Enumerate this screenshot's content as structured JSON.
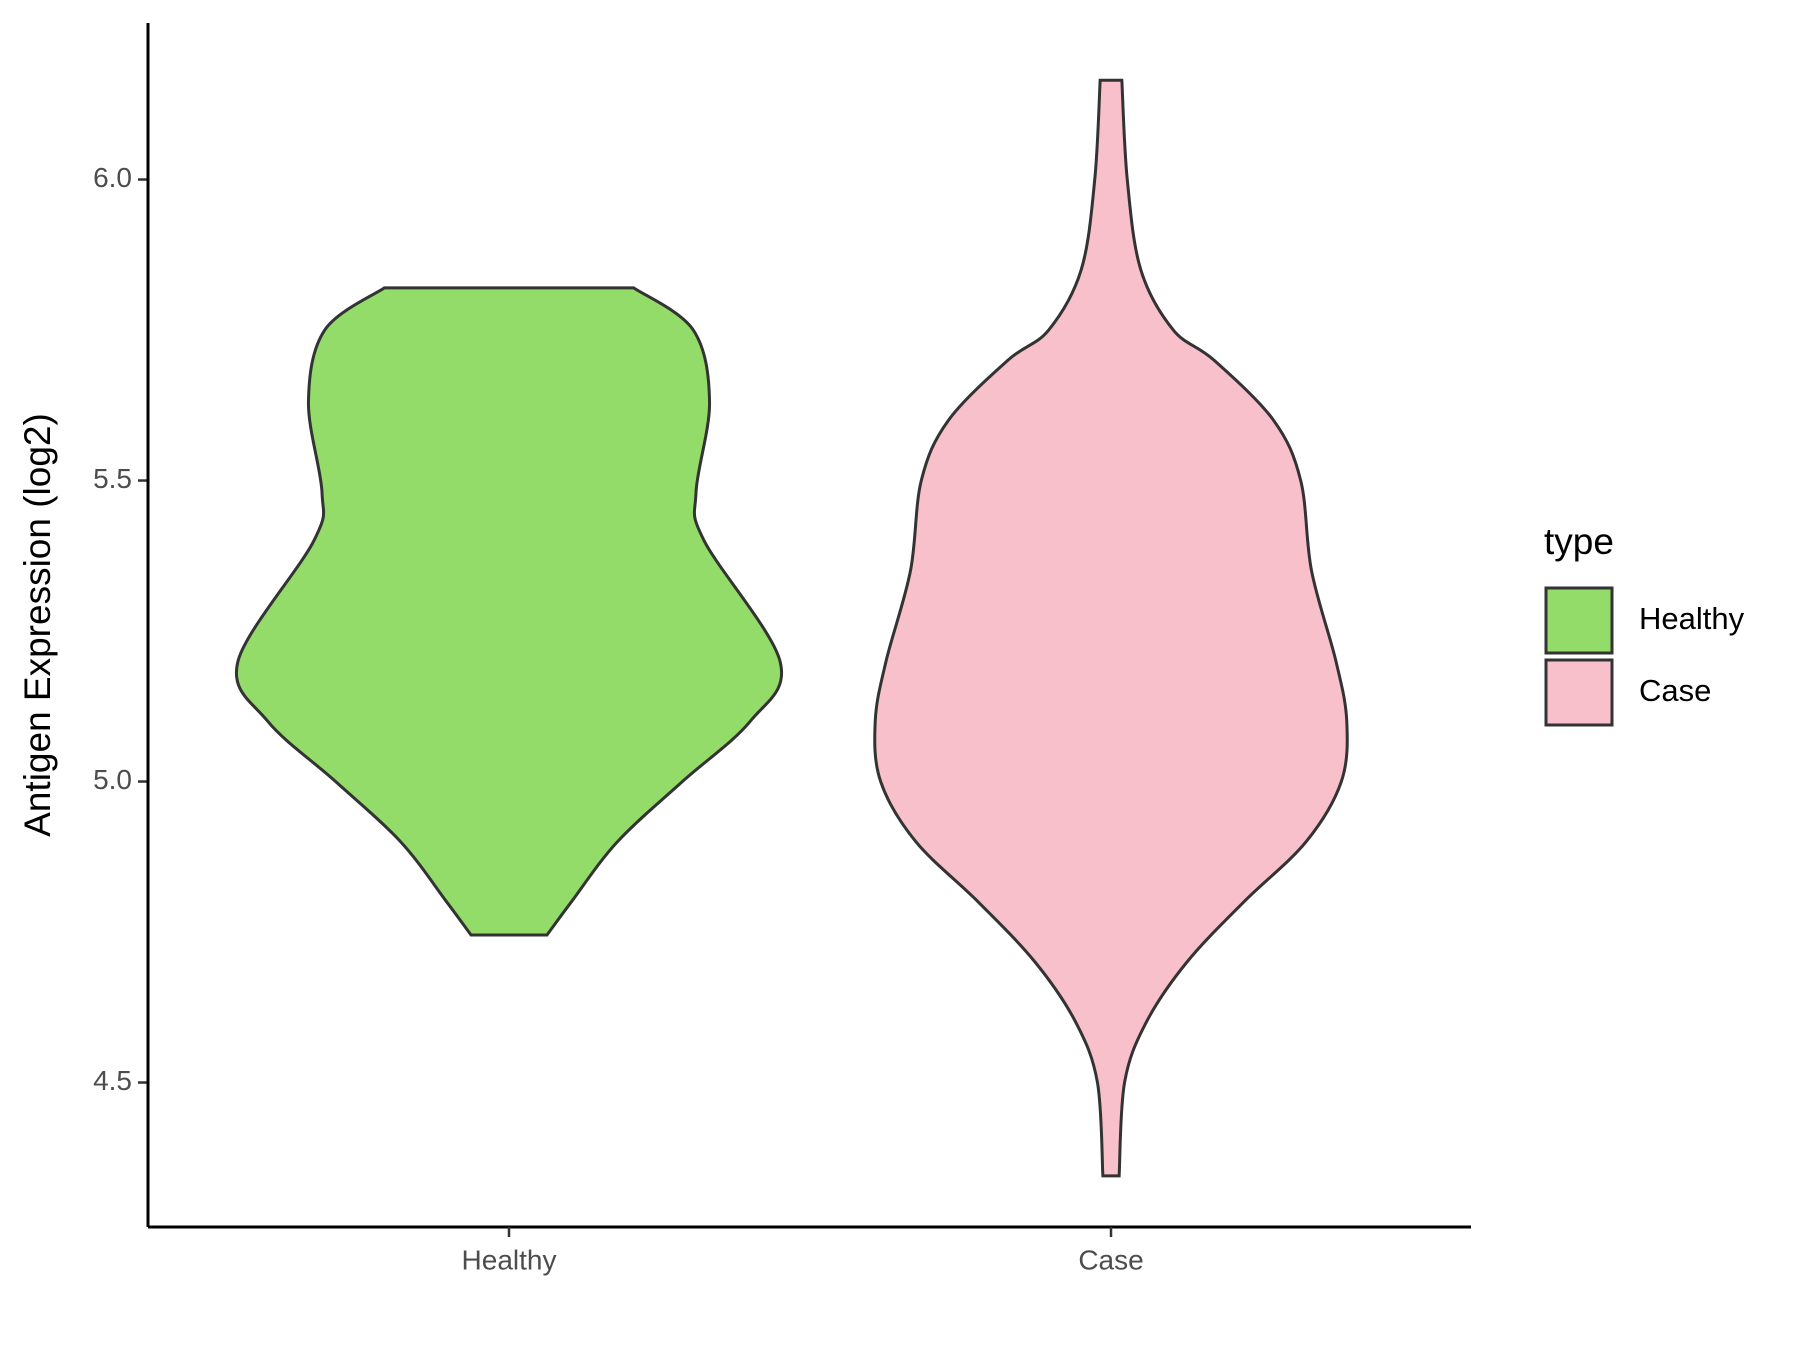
{
  "chart_data": {
    "type": "violin",
    "y_label": "Antigen Expression (log2)",
    "categories": [
      "Healthy",
      "Case"
    ],
    "legend_title": "type",
    "legend_position": "right",
    "ylim": [
      4.26,
      6.26
    ],
    "yticks": [
      {
        "value": 4.5,
        "label": "4.5"
      },
      {
        "value": 5.0,
        "label": "5.0"
      },
      {
        "value": 5.5,
        "label": "5.5"
      },
      {
        "value": 6.0,
        "label": "6.0"
      }
    ],
    "series": [
      {
        "name": "Healthy",
        "color": "#93dc6a",
        "y": [
          5.82,
          5.75,
          5.63,
          5.48,
          5.4,
          5.2,
          5.1,
          5.0,
          4.9,
          4.8,
          4.745
        ],
        "density": [
          0.46,
          0.68,
          0.74,
          0.69,
          0.72,
          1.0,
          0.89,
          0.64,
          0.4,
          0.23,
          0.14
        ]
      },
      {
        "name": "Case",
        "color": "#f7c0cb",
        "y": [
          6.165,
          6.0,
          5.85,
          5.75,
          5.7,
          5.6,
          5.5,
          5.35,
          5.2,
          5.1,
          5.0,
          4.9,
          4.8,
          4.7,
          4.6,
          4.5,
          4.345
        ],
        "density": [
          0.04,
          0.06,
          0.11,
          0.23,
          0.38,
          0.6,
          0.7,
          0.74,
          0.83,
          0.87,
          0.85,
          0.72,
          0.49,
          0.28,
          0.13,
          0.05,
          0.03
        ]
      }
    ]
  }
}
